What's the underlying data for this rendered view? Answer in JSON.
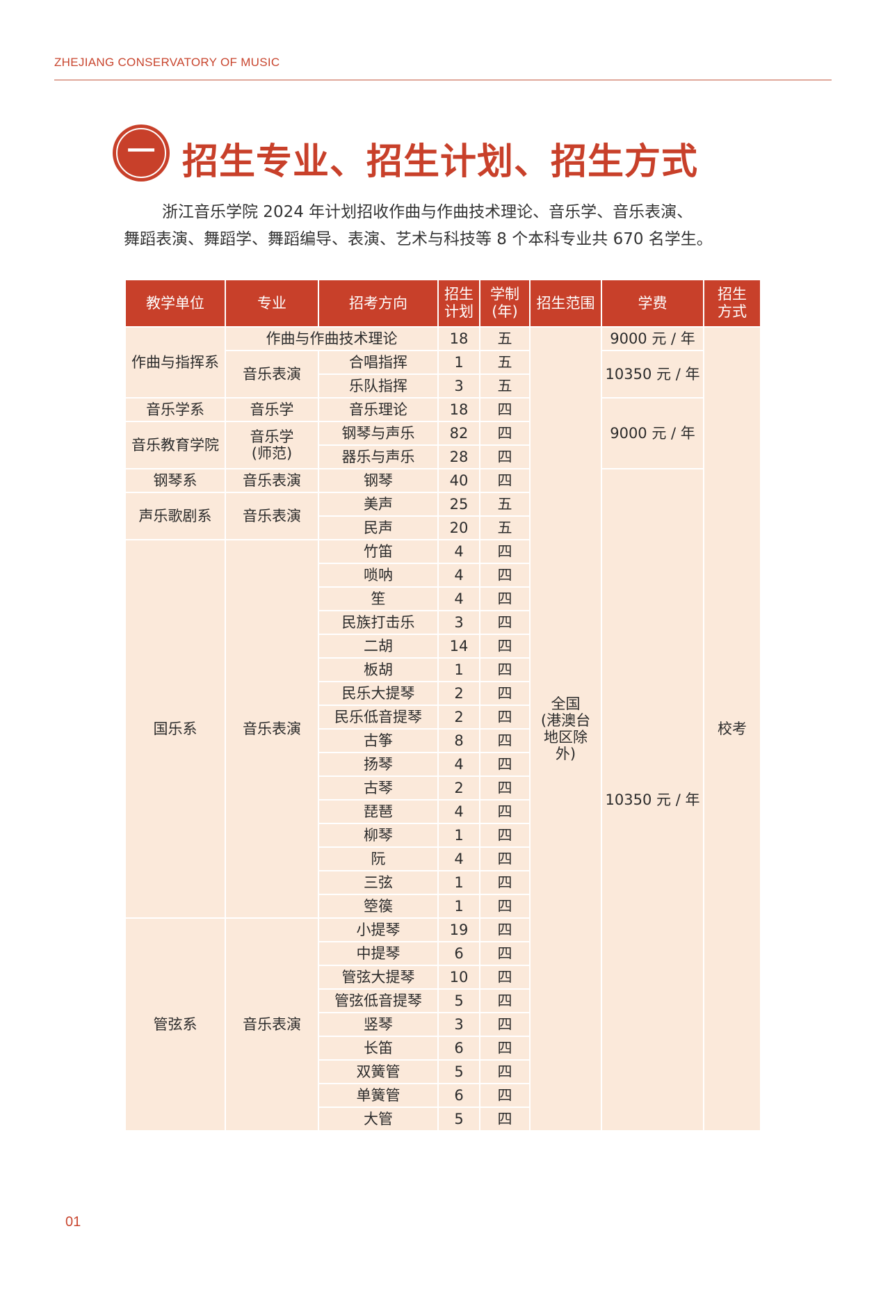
{
  "running_head": "ZHEJIANG CONSERVATORY OF MUSIC",
  "section": {
    "number": "一",
    "title": "招生专业、招生计划、招生方式"
  },
  "intro": {
    "line1": "浙江音乐学院 2024 年计划招收作曲与作曲技术理论、音乐学、音乐表演、",
    "line2": "舞蹈表演、舞蹈学、舞蹈编导、表演、艺术与科技等 8 个本科专业共 670 名学生。"
  },
  "colors": {
    "accent": "#c8402a",
    "cell_bg": "#fbe9da"
  },
  "table": {
    "headers": [
      "教学单位",
      "专业",
      "招考方向",
      "招生\n计划",
      "学制\n(年)",
      "招生范围",
      "学费",
      "招生\n方式"
    ],
    "departments": [
      {
        "text": "作曲与指挥系",
        "span": 3
      },
      {
        "text": "音乐学系",
        "span": 1
      },
      {
        "text": "音乐教育学院",
        "span": 2
      },
      {
        "text": "钢琴系",
        "span": 1
      },
      {
        "text": "声乐歌剧系",
        "span": 2
      },
      {
        "text": "国乐系",
        "span": 16
      },
      {
        "text": "管弦系",
        "span": 9
      }
    ],
    "majors": [
      {
        "text": "作曲与作曲技术理论",
        "span": 1,
        "merged_with_direction": true
      },
      {
        "text": "音乐表演",
        "span": 2
      },
      {
        "text": "音乐学",
        "span": 1
      },
      {
        "text": "音乐学\n(师范)",
        "span": 2
      },
      {
        "text": "音乐表演",
        "span": 1
      },
      {
        "text": "音乐表演",
        "span": 2
      },
      {
        "text": "音乐表演",
        "span": 16
      },
      {
        "text": "音乐表演",
        "span": 9
      }
    ],
    "rows": [
      {
        "direction": "",
        "plan": "18",
        "years": "五"
      },
      {
        "direction": "合唱指挥",
        "plan": "1",
        "years": "五"
      },
      {
        "direction": "乐队指挥",
        "plan": "3",
        "years": "五"
      },
      {
        "direction": "音乐理论",
        "plan": "18",
        "years": "四"
      },
      {
        "direction": "钢琴与声乐",
        "plan": "82",
        "years": "四"
      },
      {
        "direction": "器乐与声乐",
        "plan": "28",
        "years": "四"
      },
      {
        "direction": "钢琴",
        "plan": "40",
        "years": "四"
      },
      {
        "direction": "美声",
        "plan": "25",
        "years": "五"
      },
      {
        "direction": "民声",
        "plan": "20",
        "years": "五"
      },
      {
        "direction": "竹笛",
        "plan": "4",
        "years": "四"
      },
      {
        "direction": "唢呐",
        "plan": "4",
        "years": "四"
      },
      {
        "direction": "笙",
        "plan": "4",
        "years": "四"
      },
      {
        "direction": "民族打击乐",
        "plan": "3",
        "years": "四"
      },
      {
        "direction": "二胡",
        "plan": "14",
        "years": "四"
      },
      {
        "direction": "板胡",
        "plan": "1",
        "years": "四"
      },
      {
        "direction": "民乐大提琴",
        "plan": "2",
        "years": "四"
      },
      {
        "direction": "民乐低音提琴",
        "plan": "2",
        "years": "四"
      },
      {
        "direction": "古筝",
        "plan": "8",
        "years": "四"
      },
      {
        "direction": "扬琴",
        "plan": "4",
        "years": "四"
      },
      {
        "direction": "古琴",
        "plan": "2",
        "years": "四"
      },
      {
        "direction": "琵琶",
        "plan": "4",
        "years": "四"
      },
      {
        "direction": "柳琴",
        "plan": "1",
        "years": "四"
      },
      {
        "direction": "阮",
        "plan": "4",
        "years": "四"
      },
      {
        "direction": "三弦",
        "plan": "1",
        "years": "四"
      },
      {
        "direction": "箜篌",
        "plan": "1",
        "years": "四"
      },
      {
        "direction": "小提琴",
        "plan": "19",
        "years": "四"
      },
      {
        "direction": "中提琴",
        "plan": "6",
        "years": "四"
      },
      {
        "direction": "管弦大提琴",
        "plan": "10",
        "years": "四"
      },
      {
        "direction": "管弦低音提琴",
        "plan": "5",
        "years": "四"
      },
      {
        "direction": "竖琴",
        "plan": "3",
        "years": "四"
      },
      {
        "direction": "长笛",
        "plan": "6",
        "years": "四"
      },
      {
        "direction": "双簧管",
        "plan": "5",
        "years": "四"
      },
      {
        "direction": "单簧管",
        "plan": "6",
        "years": "四"
      },
      {
        "direction": "大管",
        "plan": "5",
        "years": "四"
      }
    ],
    "scope": "全国\n(港澳台\n地区除\n外)",
    "fees": [
      {
        "text": "9000 元 / 年",
        "span": 1
      },
      {
        "text": "10350 元 / 年",
        "span": 2
      },
      {
        "text": "9000 元 / 年",
        "span": 3
      },
      {
        "text": "10350 元 / 年",
        "span": 28
      }
    ],
    "method": "校考"
  },
  "page_number": "01"
}
